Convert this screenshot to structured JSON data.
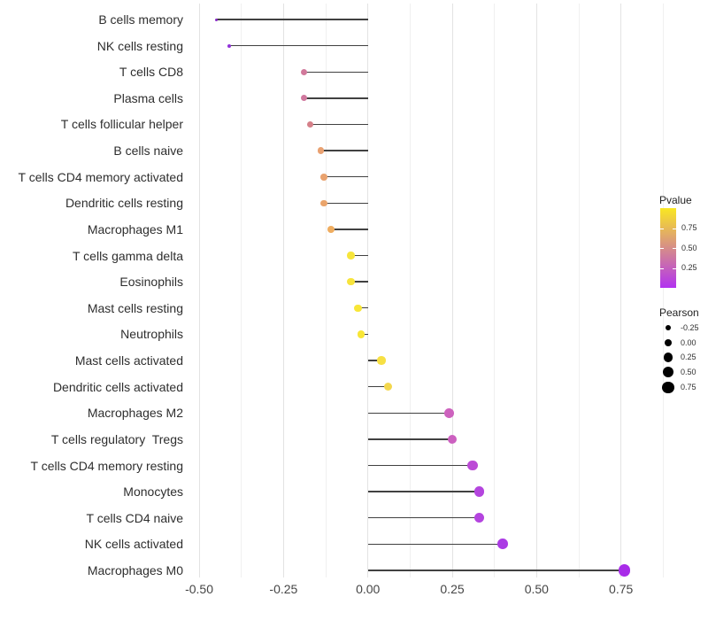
{
  "chart_data": {
    "type": "lollipop",
    "orientation": "horizontal",
    "title": "",
    "xlabel": "",
    "ylabel": "",
    "grid": true,
    "xlim": [
      -0.534,
      0.895
    ],
    "x_tick_values": [
      -0.5,
      -0.25,
      0,
      0.25,
      0.5,
      0.75
    ],
    "x_tick_labels": [
      "-0.50",
      "-0.25",
      "0.00",
      "0.25",
      "0.50",
      "0.75"
    ],
    "x_minor_tick_values": [
      -0.375,
      -0.125,
      0.125,
      0.375,
      0.625,
      0.875
    ],
    "stem_color": "#414141",
    "categories": [
      "B cells memory",
      "NK cells resting",
      "T cells CD8",
      "Plasma cells",
      "T cells follicular helper",
      "B cells naive",
      "T cells CD4 memory activated",
      "Dendritic cells resting",
      "Macrophages M1",
      "T cells gamma delta",
      "Eosinophils",
      "Mast cells resting",
      "Neutrophils",
      "Mast cells activated",
      "Dendritic cells activated",
      "Macrophages M2",
      "T cells regulatory  Tregs",
      "T cells CD4 memory resting",
      "Monocytes",
      "T cells CD4 naive",
      "NK cells activated",
      "Macrophages M0"
    ],
    "points": [
      {
        "label": "B cells memory",
        "pearson": -0.45,
        "pvalue": 0.01,
        "color": "#8A2BC8"
      },
      {
        "label": "NK cells resting",
        "pearson": -0.41,
        "pvalue": 0.03,
        "color": "#9232DA"
      },
      {
        "label": "T cells CD8",
        "pearson": -0.19,
        "pvalue": 0.42,
        "color": "#D1799B"
      },
      {
        "label": "Plasma cells",
        "pearson": -0.19,
        "pvalue": 0.41,
        "color": "#D0789E"
      },
      {
        "label": "T cells follicular helper",
        "pearson": -0.17,
        "pvalue": 0.47,
        "color": "#D58089"
      },
      {
        "label": "B cells naive",
        "pearson": -0.14,
        "pvalue": 0.6,
        "color": "#E9A171"
      },
      {
        "label": "T cells CD4 memory activated",
        "pearson": -0.13,
        "pvalue": 0.61,
        "color": "#E9A26E"
      },
      {
        "label": "Dendritic cells resting",
        "pearson": -0.13,
        "pvalue": 0.62,
        "color": "#EAA46B"
      },
      {
        "label": "Macrophages M1",
        "pearson": -0.11,
        "pvalue": 0.68,
        "color": "#EFAD60"
      },
      {
        "label": "T cells gamma delta",
        "pearson": -0.05,
        "pvalue": 0.95,
        "color": "#F7E53B"
      },
      {
        "label": "Eosinophils",
        "pearson": -0.05,
        "pvalue": 0.94,
        "color": "#F7E43C"
      },
      {
        "label": "Mast cells resting",
        "pearson": -0.03,
        "pvalue": 0.96,
        "color": "#F8E637"
      },
      {
        "label": "Neutrophils",
        "pearson": -0.02,
        "pvalue": 0.96,
        "color": "#F8E636"
      },
      {
        "label": "Mast cells activated",
        "pearson": 0.04,
        "pvalue": 0.92,
        "color": "#F7E043"
      },
      {
        "label": "Dendritic cells activated",
        "pearson": 0.06,
        "pvalue": 0.87,
        "color": "#F3D74D"
      },
      {
        "label": "Macrophages M2",
        "pearson": 0.24,
        "pvalue": 0.27,
        "color": "#CD62BE"
      },
      {
        "label": "T cells regulatory  Tregs",
        "pearson": 0.25,
        "pvalue": 0.26,
        "color": "#CC60C0"
      },
      {
        "label": "T cells CD4 memory resting",
        "pearson": 0.31,
        "pvalue": 0.15,
        "color": "#BC4BD6"
      },
      {
        "label": "Monocytes",
        "pearson": 0.33,
        "pvalue": 0.11,
        "color": "#B445DE"
      },
      {
        "label": "T cells CD4 naive",
        "pearson": 0.33,
        "pvalue": 0.11,
        "color": "#B444DF"
      },
      {
        "label": "NK cells activated",
        "pearson": 0.4,
        "pvalue": 0.06,
        "color": "#AB3BE4"
      },
      {
        "label": "Macrophages M0",
        "pearson": 0.76,
        "pvalue": 0.01,
        "color": "#A82BE8"
      }
    ],
    "legends": {
      "pvalue": {
        "title": "Pvalue",
        "gradient_high_color": "#F9E722",
        "gradient_low_color": "#B232F0",
        "range": [
          0,
          1
        ],
        "tick_labels": [
          "0.75",
          "0.50",
          "0.25"
        ],
        "tick_values": [
          0.75,
          0.5,
          0.25
        ]
      },
      "pearson": {
        "title": "Pearson",
        "entries": [
          {
            "label": "-0.25",
            "value": -0.25
          },
          {
            "label": "0.00",
            "value": 0.0
          },
          {
            "label": "0.25",
            "value": 0.25
          },
          {
            "label": "0.50",
            "value": 0.5
          },
          {
            "label": "0.75",
            "value": 0.75
          }
        ]
      }
    }
  }
}
